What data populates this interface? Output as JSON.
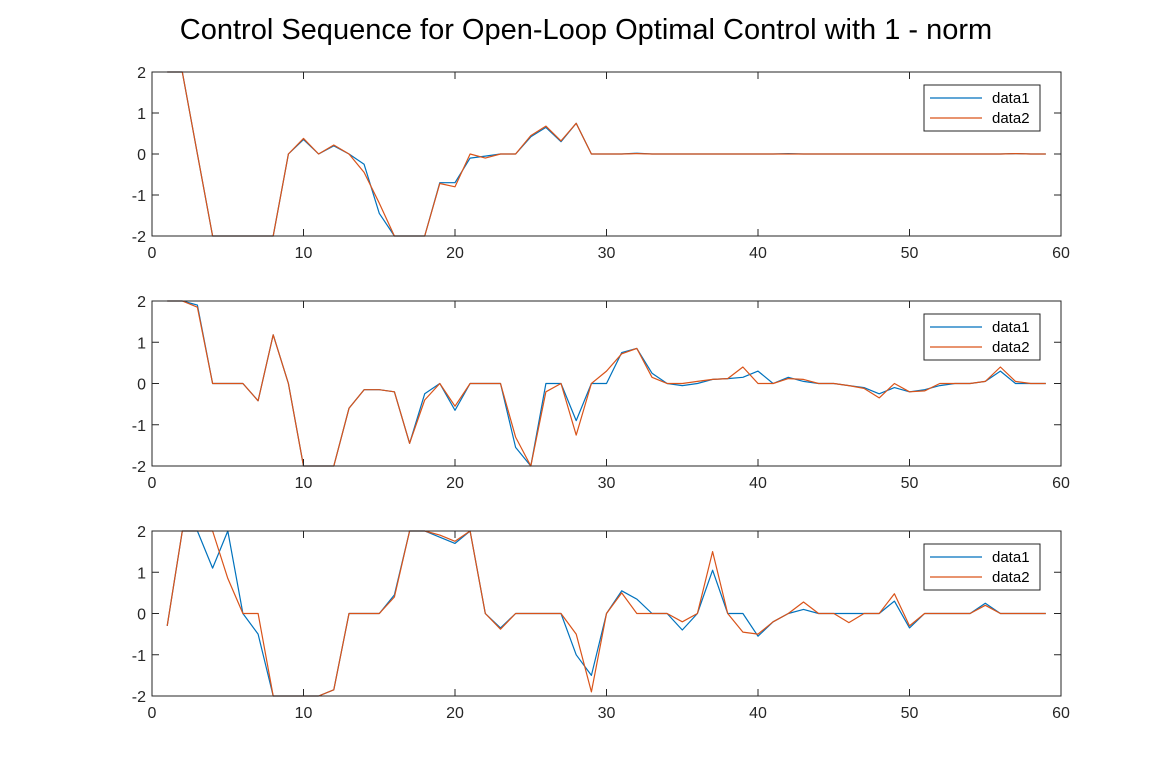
{
  "title": "Control Sequence for Open-Loop Optimal Control with 1 - norm",
  "colors": {
    "series1": "#0072BD",
    "series2": "#D95319",
    "axes": "#262626"
  },
  "chart_data": [
    {
      "type": "line",
      "xlim": [
        0,
        60
      ],
      "ylim": [
        -2,
        2
      ],
      "xticks": [
        0,
        10,
        20,
        30,
        40,
        50,
        60
      ],
      "yticks": [
        2,
        1,
        0,
        -1,
        -2
      ],
      "legend": "top-right",
      "series": [
        {
          "name": "data1",
          "x": [
            1,
            2,
            3,
            4,
            5,
            6,
            7,
            8,
            9,
            10,
            11,
            12,
            13,
            14,
            15,
            16,
            17,
            18,
            19,
            20,
            21,
            22,
            23,
            24,
            25,
            26,
            27,
            28,
            29,
            30,
            31,
            32,
            33,
            34,
            35,
            36,
            37,
            38,
            39,
            40,
            41,
            42,
            43,
            44,
            45,
            46,
            47,
            48,
            49,
            50,
            51,
            52,
            53,
            54,
            55,
            56,
            57,
            58,
            59
          ],
          "y": [
            2,
            2,
            0,
            -2,
            -2,
            -2,
            -2,
            -2,
            0,
            0.35,
            0,
            0.2,
            0,
            -0.25,
            -1.45,
            -2,
            -2,
            -2,
            -0.7,
            -0.7,
            -0.1,
            -0.05,
            0,
            0,
            0.42,
            0.65,
            0.3,
            0.75,
            0,
            0,
            0,
            0.02,
            0,
            0,
            0,
            0,
            0,
            0,
            0,
            0,
            0,
            0.01,
            0,
            0,
            0,
            0,
            0,
            0,
            0,
            0,
            0,
            0,
            0,
            0,
            0,
            0,
            0.01,
            0,
            0
          ]
        },
        {
          "name": "data2",
          "x": [
            1,
            2,
            3,
            4,
            5,
            6,
            7,
            8,
            9,
            10,
            11,
            12,
            13,
            14,
            15,
            16,
            17,
            18,
            19,
            20,
            21,
            22,
            23,
            24,
            25,
            26,
            27,
            28,
            29,
            30,
            31,
            32,
            33,
            34,
            35,
            36,
            37,
            38,
            39,
            40,
            41,
            42,
            43,
            44,
            45,
            46,
            47,
            48,
            49,
            50,
            51,
            52,
            53,
            54,
            55,
            56,
            57,
            58,
            59
          ],
          "y": [
            2,
            2,
            0,
            -2,
            -2,
            -2,
            -2,
            -2,
            0,
            0.38,
            0,
            0.22,
            0,
            -0.45,
            -1.2,
            -2,
            -2,
            -2,
            -0.72,
            -0.8,
            0,
            -0.1,
            0,
            0,
            0.45,
            0.68,
            0.32,
            0.75,
            0,
            0,
            0,
            0.01,
            0,
            0,
            0,
            0,
            0,
            0,
            0,
            0,
            0,
            0,
            0,
            0,
            0,
            0,
            0,
            0,
            0,
            0,
            0,
            0,
            0,
            0,
            0,
            0,
            0.01,
            0,
            0
          ]
        }
      ]
    },
    {
      "type": "line",
      "xlim": [
        0,
        60
      ],
      "ylim": [
        -2,
        2
      ],
      "xticks": [
        0,
        10,
        20,
        30,
        40,
        50,
        60
      ],
      "yticks": [
        2,
        1,
        0,
        -1,
        -2
      ],
      "legend": "top-right",
      "series": [
        {
          "name": "data1",
          "x": [
            1,
            2,
            3,
            4,
            5,
            6,
            7,
            8,
            9,
            10,
            11,
            12,
            13,
            14,
            15,
            16,
            17,
            18,
            19,
            20,
            21,
            22,
            23,
            24,
            25,
            26,
            27,
            28,
            29,
            30,
            31,
            32,
            33,
            34,
            35,
            36,
            37,
            38,
            39,
            40,
            41,
            42,
            43,
            44,
            45,
            46,
            47,
            48,
            49,
            50,
            51,
            52,
            53,
            54,
            55,
            56,
            57,
            58,
            59
          ],
          "y": [
            2,
            2,
            1.9,
            0,
            0,
            0,
            -0.42,
            1.18,
            0,
            -2,
            -2,
            -2,
            -0.6,
            -0.15,
            -0.15,
            -0.2,
            -1.45,
            -0.25,
            0,
            -0.65,
            0,
            0,
            0,
            -1.55,
            -2,
            0,
            0,
            -0.9,
            0,
            0,
            0.75,
            0.85,
            0.25,
            0,
            -0.05,
            0,
            0.1,
            0.12,
            0.15,
            0.3,
            0,
            0.15,
            0.05,
            0,
            0,
            -0.05,
            -0.1,
            -0.25,
            -0.1,
            -0.2,
            -0.15,
            -0.05,
            0,
            0,
            0.05,
            0.3,
            0,
            0,
            0
          ]
        },
        {
          "name": "data2",
          "x": [
            1,
            2,
            3,
            4,
            5,
            6,
            7,
            8,
            9,
            10,
            11,
            12,
            13,
            14,
            15,
            16,
            17,
            18,
            19,
            20,
            21,
            22,
            23,
            24,
            25,
            26,
            27,
            28,
            29,
            30,
            31,
            32,
            33,
            34,
            35,
            36,
            37,
            38,
            39,
            40,
            41,
            42,
            43,
            44,
            45,
            46,
            47,
            48,
            49,
            50,
            51,
            52,
            53,
            54,
            55,
            56,
            57,
            58,
            59
          ],
          "y": [
            2,
            2,
            1.85,
            0,
            0,
            0,
            -0.42,
            1.18,
            0,
            -2,
            -2,
            -2,
            -0.6,
            -0.15,
            -0.15,
            -0.2,
            -1.45,
            -0.4,
            0,
            -0.55,
            0,
            0,
            0,
            -1.3,
            -2,
            -0.2,
            0,
            -1.25,
            0,
            0.3,
            0.72,
            0.85,
            0.15,
            0,
            0,
            0.05,
            0.1,
            0.12,
            0.4,
            0,
            0,
            0.12,
            0.1,
            0,
            0,
            -0.05,
            -0.12,
            -0.35,
            0,
            -0.2,
            -0.18,
            0,
            0,
            0,
            0.05,
            0.4,
            0.05,
            0,
            0
          ]
        }
      ]
    },
    {
      "type": "line",
      "xlim": [
        0,
        60
      ],
      "ylim": [
        -2,
        2
      ],
      "xticks": [
        0,
        10,
        20,
        30,
        40,
        50,
        60
      ],
      "yticks": [
        2,
        1,
        0,
        -1,
        -2
      ],
      "legend": "top-right",
      "series": [
        {
          "name": "data1",
          "x": [
            1,
            2,
            3,
            4,
            5,
            6,
            7,
            8,
            9,
            10,
            11,
            12,
            13,
            14,
            15,
            16,
            17,
            18,
            19,
            20,
            21,
            22,
            23,
            24,
            25,
            26,
            27,
            28,
            29,
            30,
            31,
            32,
            33,
            34,
            35,
            36,
            37,
            38,
            39,
            40,
            41,
            42,
            43,
            44,
            45,
            46,
            47,
            48,
            49,
            50,
            51,
            52,
            53,
            54,
            55,
            56,
            57,
            58,
            59
          ],
          "y": [
            -0.3,
            2,
            2,
            1.1,
            2,
            0,
            -0.5,
            -2,
            -2,
            -2,
            -2,
            -1.85,
            0,
            0,
            0,
            0.45,
            2,
            2,
            1.85,
            1.7,
            2,
            0,
            -0.35,
            0,
            0,
            0,
            0,
            -1,
            -1.5,
            0,
            0.55,
            0.35,
            0,
            0,
            -0.4,
            0,
            1.05,
            0,
            0,
            -0.55,
            -0.2,
            0,
            0.1,
            0,
            0,
            0,
            0,
            0,
            0.3,
            -0.35,
            0,
            0,
            0,
            0,
            0.25,
            0,
            0,
            0,
            0
          ]
        },
        {
          "name": "data2",
          "x": [
            1,
            2,
            3,
            4,
            5,
            6,
            7,
            8,
            9,
            10,
            11,
            12,
            13,
            14,
            15,
            16,
            17,
            18,
            19,
            20,
            21,
            22,
            23,
            24,
            25,
            26,
            27,
            28,
            29,
            30,
            31,
            32,
            33,
            34,
            35,
            36,
            37,
            38,
            39,
            40,
            41,
            42,
            43,
            44,
            45,
            46,
            47,
            48,
            49,
            50,
            51,
            52,
            53,
            54,
            55,
            56,
            57,
            58,
            59
          ],
          "y": [
            -0.3,
            2,
            2,
            2,
            0.85,
            0,
            0,
            -2,
            -2,
            -2,
            -2,
            -1.85,
            0,
            0,
            0,
            0.4,
            2,
            2,
            1.9,
            1.75,
            2,
            0,
            -0.38,
            0,
            0,
            0,
            0,
            -0.5,
            -1.9,
            0,
            0.5,
            0,
            0,
            0,
            -0.2,
            0,
            1.5,
            0,
            -0.45,
            -0.5,
            -0.2,
            0,
            0.28,
            0,
            0,
            -0.22,
            0,
            0,
            0.48,
            -0.3,
            0,
            0,
            0,
            0,
            0.2,
            0,
            0,
            0,
            0
          ]
        }
      ]
    }
  ]
}
